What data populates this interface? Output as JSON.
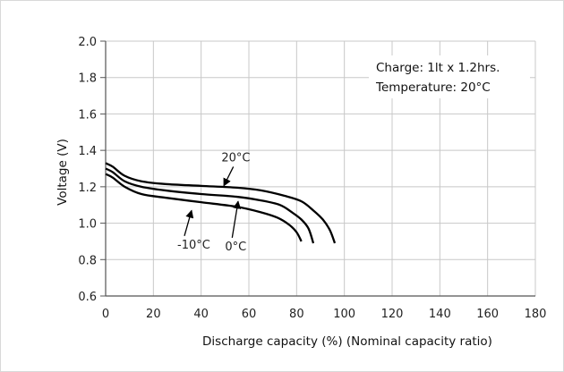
{
  "chart_data": {
    "type": "line",
    "title": "",
    "xlabel": "Discharge capacity (%) (Nominal capacity ratio)",
    "ylabel": "Voltage (V)",
    "xlim": [
      0,
      180
    ],
    "ylim": [
      0.6,
      2.0
    ],
    "xticks": [
      0,
      20,
      40,
      60,
      80,
      100,
      120,
      140,
      160,
      180
    ],
    "yticks": [
      0.6,
      0.8,
      1.0,
      1.2,
      1.4,
      1.6,
      1.8,
      2.0
    ],
    "ytick_labels": [
      "0.6",
      "0.8",
      "1.0",
      "1.2",
      "1.4",
      "1.6",
      "1.8",
      "2.0"
    ],
    "grid": true,
    "annotation_box": {
      "lines": [
        "Charge: 1lt x 1.2hrs.",
        "Temperature: 20°C"
      ]
    },
    "series": [
      {
        "name": "20°C",
        "color": "#000000",
        "points": [
          [
            0,
            1.33
          ],
          [
            3,
            1.31
          ],
          [
            8,
            1.26
          ],
          [
            15,
            1.23
          ],
          [
            25,
            1.215
          ],
          [
            40,
            1.205
          ],
          [
            55,
            1.195
          ],
          [
            65,
            1.18
          ],
          [
            75,
            1.15
          ],
          [
            82,
            1.12
          ],
          [
            87,
            1.07
          ],
          [
            91,
            1.02
          ],
          [
            94,
            0.96
          ],
          [
            96,
            0.89
          ]
        ]
      },
      {
        "name": "0°C",
        "color": "#000000",
        "points": [
          [
            0,
            1.3
          ],
          [
            3,
            1.28
          ],
          [
            8,
            1.23
          ],
          [
            15,
            1.2
          ],
          [
            25,
            1.18
          ],
          [
            40,
            1.16
          ],
          [
            55,
            1.145
          ],
          [
            65,
            1.125
          ],
          [
            73,
            1.1
          ],
          [
            78,
            1.06
          ],
          [
            82,
            1.02
          ],
          [
            85,
            0.97
          ],
          [
            87,
            0.89
          ]
        ]
      },
      {
        "name": "-10°C",
        "color": "#000000",
        "points": [
          [
            0,
            1.27
          ],
          [
            3,
            1.25
          ],
          [
            8,
            1.2
          ],
          [
            15,
            1.16
          ],
          [
            25,
            1.14
          ],
          [
            40,
            1.115
          ],
          [
            55,
            1.09
          ],
          [
            65,
            1.06
          ],
          [
            72,
            1.03
          ],
          [
            77,
            0.99
          ],
          [
            80,
            0.95
          ],
          [
            82,
            0.9
          ]
        ]
      }
    ],
    "callouts": [
      {
        "label": "20°C",
        "text_at": [
          48.5,
          1.34
        ],
        "arrow_from": [
          53.5,
          1.31
        ],
        "arrow_to": [
          49.5,
          1.205
        ]
      },
      {
        "label": "0°C",
        "text_at": [
          50,
          0.85
        ],
        "arrow_from": [
          53,
          0.92
        ],
        "arrow_to": [
          55.5,
          1.12
        ]
      },
      {
        "label": "-10°C",
        "text_at": [
          30,
          0.86
        ],
        "arrow_from": [
          33,
          0.93
        ],
        "arrow_to": [
          36,
          1.07
        ]
      }
    ]
  }
}
